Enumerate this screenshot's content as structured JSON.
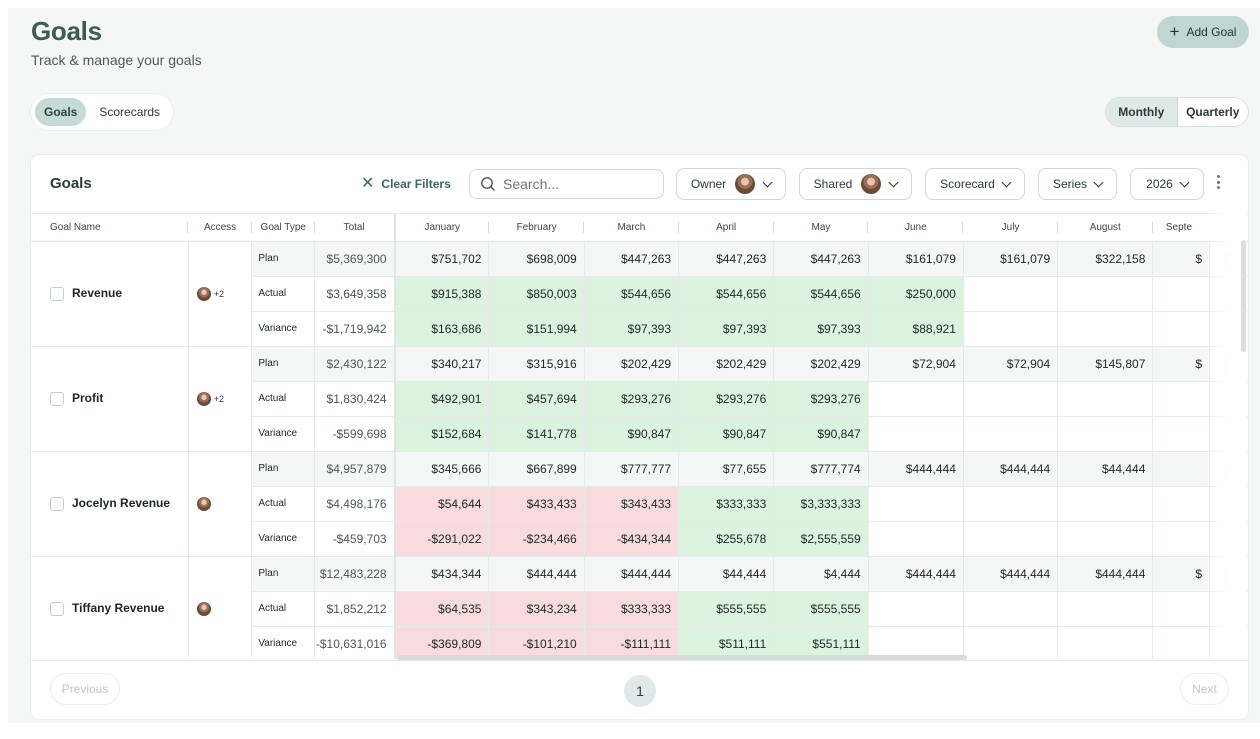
{
  "header": {
    "title": "Goals",
    "subtitle": "Track & manage your goals",
    "add_label": "Add Goal"
  },
  "tabs": [
    {
      "label": "Goals",
      "active": true
    },
    {
      "label": "Scorecards",
      "active": false
    }
  ],
  "period": [
    {
      "label": "Monthly",
      "active": true
    },
    {
      "label": "Quarterly",
      "active": false
    }
  ],
  "card": {
    "title": "Goals",
    "clear_filters": "Clear Filters",
    "search_placeholder": "Search...",
    "filters": {
      "owner": "Owner",
      "shared": "Shared",
      "scorecard": "Scorecard",
      "series": "Series",
      "year": "2026"
    }
  },
  "columns": {
    "goal_name": "Goal Name",
    "access": "Access",
    "goal_type": "Goal Type",
    "total": "Total",
    "months": [
      "January",
      "February",
      "March",
      "April",
      "May",
      "June",
      "July",
      "August",
      "Septe"
    ]
  },
  "goals": [
    {
      "name": "Revenue",
      "access_extra": "+2",
      "rows": [
        {
          "type": "Plan",
          "total": "$5,369,300",
          "values": [
            "$751,702",
            "$698,009",
            "$447,263",
            "$447,263",
            "$447,263",
            "$161,079",
            "$161,079",
            "$322,158",
            "$"
          ]
        },
        {
          "type": "Actual",
          "total": "$3,649,358",
          "values": [
            "$915,388",
            "$850,003",
            "$544,656",
            "$544,656",
            "$544,656",
            "$250,000",
            "",
            "",
            ""
          ]
        },
        {
          "type": "Variance",
          "total": "-$1,719,942",
          "values": [
            "$163,686",
            "$151,994",
            "$97,393",
            "$97,393",
            "$97,393",
            "$88,921",
            "",
            "",
            ""
          ]
        }
      ]
    },
    {
      "name": "Profit",
      "access_extra": "+2",
      "rows": [
        {
          "type": "Plan",
          "total": "$2,430,122",
          "values": [
            "$340,217",
            "$315,916",
            "$202,429",
            "$202,429",
            "$202,429",
            "$72,904",
            "$72,904",
            "$145,807",
            "$"
          ]
        },
        {
          "type": "Actual",
          "total": "$1,830,424",
          "values": [
            "$492,901",
            "$457,694",
            "$293,276",
            "$293,276",
            "$293,276",
            "",
            "",
            "",
            ""
          ]
        },
        {
          "type": "Variance",
          "total": "-$599,698",
          "values": [
            "$152,684",
            "$141,778",
            "$90,847",
            "$90,847",
            "$90,847",
            "",
            "",
            "",
            ""
          ]
        }
      ]
    },
    {
      "name": "Jocelyn Revenue",
      "access_extra": "",
      "rows": [
        {
          "type": "Plan",
          "total": "$4,957,879",
          "values": [
            "$345,666",
            "$667,899",
            "$777,777",
            "$77,655",
            "$777,774",
            "$444,444",
            "$444,444",
            "$44,444",
            ""
          ]
        },
        {
          "type": "Actual",
          "total": "$4,498,176",
          "values": [
            "$54,644",
            "$433,433",
            "$343,433",
            "$333,333",
            "$3,333,333",
            "",
            "",
            "",
            ""
          ]
        },
        {
          "type": "Variance",
          "total": "-$459,703",
          "values": [
            "-$291,022",
            "-$234,466",
            "-$434,344",
            "$255,678",
            "$2,555,559",
            "",
            "",
            "",
            ""
          ]
        }
      ]
    },
    {
      "name": "Tiffany Revenue",
      "access_extra": "",
      "rows": [
        {
          "type": "Plan",
          "total": "$12,483,228",
          "values": [
            "$434,344",
            "$444,444",
            "$444,444",
            "$44,444",
            "$4,444",
            "$444,444",
            "$444,444",
            "$444,444",
            "$"
          ]
        },
        {
          "type": "Actual",
          "total": "$1,852,212",
          "values": [
            "$64,535",
            "$343,234",
            "$333,333",
            "$555,555",
            "$555,555",
            "",
            "",
            "",
            ""
          ]
        },
        {
          "type": "Variance",
          "total": "-$10,631,016",
          "values": [
            "-$369,809",
            "-$101,210",
            "-$111,111",
            "$511,111",
            "$551,111",
            "",
            "",
            "",
            ""
          ]
        }
      ]
    }
  ],
  "cell_colors": {
    "positive": "#dcf3df",
    "negative": "#f8dcdd"
  },
  "pager": {
    "previous": "Previous",
    "page": "1",
    "next": "Next"
  }
}
